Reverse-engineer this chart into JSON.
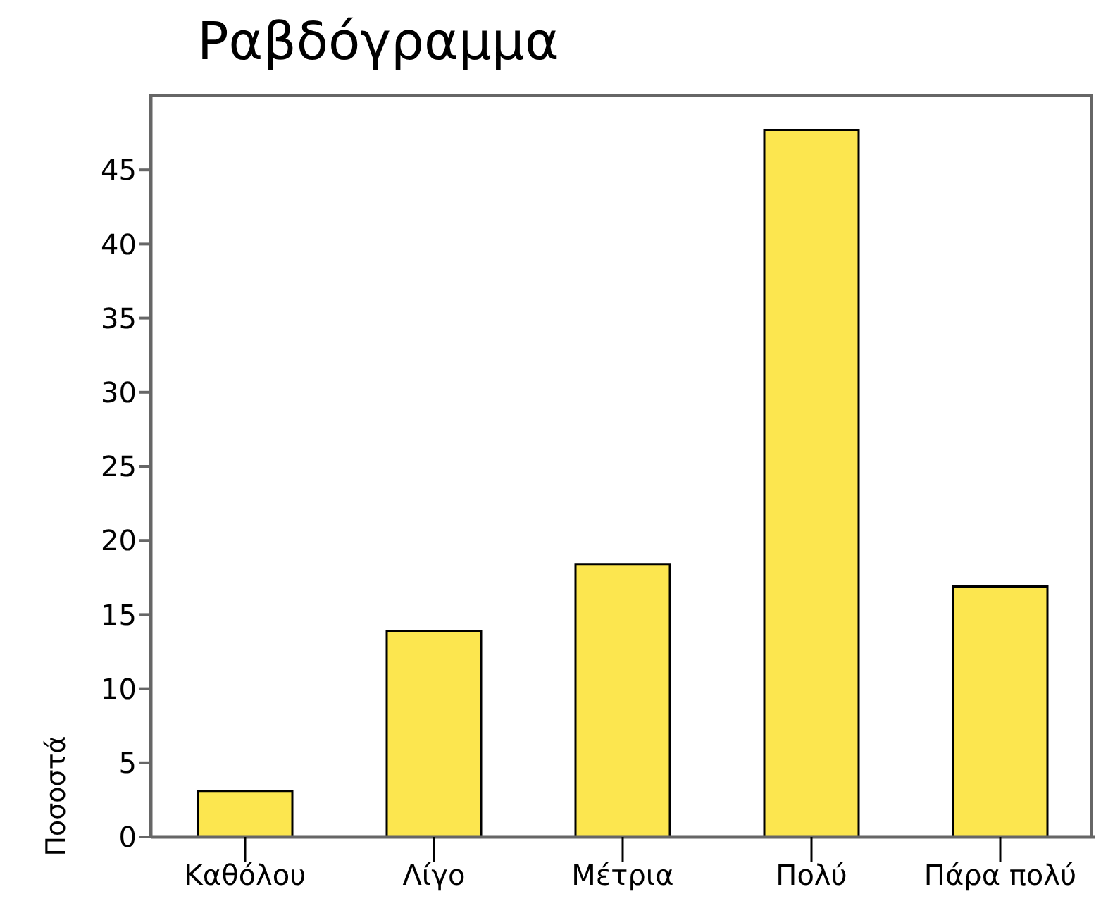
{
  "chart_data": {
    "type": "bar",
    "title": "Ραβδόγραμμα",
    "ylabel": "Ποσοστά",
    "categories": [
      "Καθόλου",
      "Λίγο",
      "Μέτρια",
      "Πολύ",
      "Πάρα πολύ"
    ],
    "values": [
      3.1,
      13.9,
      18.4,
      47.7,
      16.9
    ],
    "color": "#fce64f",
    "ylim": [
      0,
      50
    ],
    "yticks": [
      0,
      5,
      10,
      15,
      20,
      25,
      30,
      35,
      40,
      45
    ],
    "grid": false,
    "legend": false
  }
}
